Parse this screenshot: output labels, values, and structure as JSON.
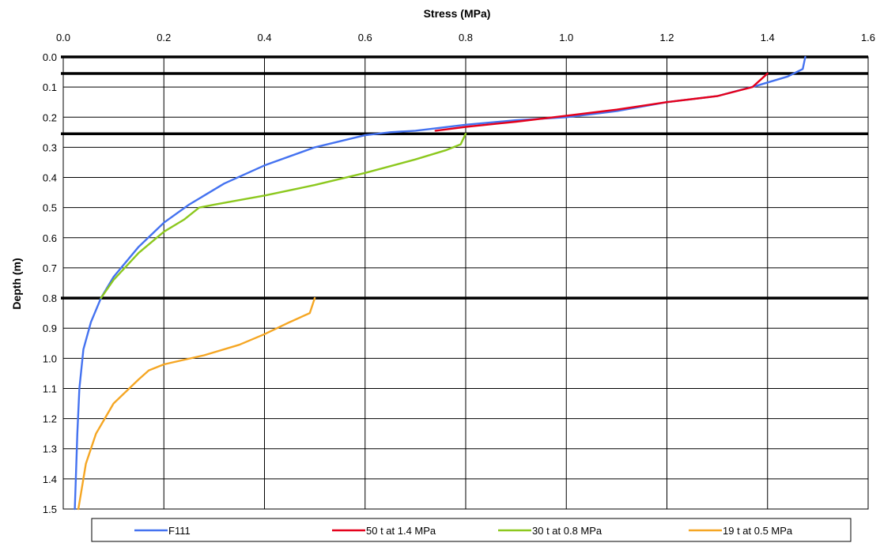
{
  "chart_data": {
    "type": "line",
    "title": "",
    "xlabel": "Stress (MPa)",
    "ylabel": "Depth (m)",
    "x_axis_position": "top",
    "y_axis_inverted": true,
    "xlim": [
      0,
      1.6
    ],
    "ylim": [
      0,
      1.5
    ],
    "x_ticks": [
      "0.0",
      "0.2",
      "0.4",
      "0.6",
      "0.8",
      "1.0",
      "1.2",
      "1.4",
      "1.6"
    ],
    "y_ticks": [
      "0.0",
      "0.1",
      "0.2",
      "0.3",
      "0.4",
      "0.5",
      "0.6",
      "0.7",
      "0.8",
      "0.9",
      "1.0",
      "1.1",
      "1.2",
      "1.3",
      "1.4",
      "1.5"
    ],
    "grid": true,
    "legend_position": "bottom",
    "layer_boundaries_depth_m": [
      0.0,
      0.055,
      0.255,
      0.8
    ],
    "layer_boundary_color": "#000000",
    "series": [
      {
        "name": "F111",
        "color": "#4472F0",
        "points": [
          {
            "x": 1.475,
            "y": 0.0
          },
          {
            "x": 1.47,
            "y": 0.04
          },
          {
            "x": 1.44,
            "y": 0.065
          },
          {
            "x": 1.38,
            "y": 0.095
          },
          {
            "x": 1.3,
            "y": 0.13
          },
          {
            "x": 1.2,
            "y": 0.15
          },
          {
            "x": 1.1,
            "y": 0.18
          },
          {
            "x": 1.0,
            "y": 0.2
          },
          {
            "x": 0.9,
            "y": 0.21
          },
          {
            "x": 0.8,
            "y": 0.225
          },
          {
            "x": 0.7,
            "y": 0.245
          },
          {
            "x": 0.65,
            "y": 0.25
          },
          {
            "x": 0.6,
            "y": 0.26
          },
          {
            "x": 0.5,
            "y": 0.3
          },
          {
            "x": 0.4,
            "y": 0.36
          },
          {
            "x": 0.32,
            "y": 0.42
          },
          {
            "x": 0.25,
            "y": 0.49
          },
          {
            "x": 0.2,
            "y": 0.55
          },
          {
            "x": 0.15,
            "y": 0.63
          },
          {
            "x": 0.1,
            "y": 0.73
          },
          {
            "x": 0.075,
            "y": 0.8
          },
          {
            "x": 0.055,
            "y": 0.88
          },
          {
            "x": 0.04,
            "y": 0.97
          },
          {
            "x": 0.032,
            "y": 1.1
          },
          {
            "x": 0.028,
            "y": 1.25
          },
          {
            "x": 0.025,
            "y": 1.4
          },
          {
            "x": 0.023,
            "y": 1.5
          }
        ]
      },
      {
        "name": "50 t at 1.4 MPa",
        "color": "#E5001B",
        "points": [
          {
            "x": 1.4,
            "y": 0.055
          },
          {
            "x": 1.39,
            "y": 0.07
          },
          {
            "x": 1.37,
            "y": 0.1
          },
          {
            "x": 1.3,
            "y": 0.13
          },
          {
            "x": 1.2,
            "y": 0.15
          },
          {
            "x": 1.1,
            "y": 0.175
          },
          {
            "x": 1.0,
            "y": 0.195
          },
          {
            "x": 0.9,
            "y": 0.215
          },
          {
            "x": 0.8,
            "y": 0.232
          },
          {
            "x": 0.74,
            "y": 0.245
          }
        ]
      },
      {
        "name": "30 t at 0.8 MPa",
        "color": "#8CC81E",
        "points": [
          {
            "x": 0.8,
            "y": 0.255
          },
          {
            "x": 0.79,
            "y": 0.29
          },
          {
            "x": 0.76,
            "y": 0.31
          },
          {
            "x": 0.7,
            "y": 0.34
          },
          {
            "x": 0.6,
            "y": 0.385
          },
          {
            "x": 0.5,
            "y": 0.425
          },
          {
            "x": 0.4,
            "y": 0.46
          },
          {
            "x": 0.3,
            "y": 0.49
          },
          {
            "x": 0.27,
            "y": 0.5
          },
          {
            "x": 0.24,
            "y": 0.54
          },
          {
            "x": 0.2,
            "y": 0.58
          },
          {
            "x": 0.15,
            "y": 0.65
          },
          {
            "x": 0.1,
            "y": 0.74
          },
          {
            "x": 0.075,
            "y": 0.8
          }
        ]
      },
      {
        "name": "19 t at 0.5 MPa",
        "color": "#F5A623",
        "points": [
          {
            "x": 0.5,
            "y": 0.8
          },
          {
            "x": 0.49,
            "y": 0.85
          },
          {
            "x": 0.45,
            "y": 0.88
          },
          {
            "x": 0.4,
            "y": 0.92
          },
          {
            "x": 0.35,
            "y": 0.955
          },
          {
            "x": 0.28,
            "y": 0.99
          },
          {
            "x": 0.2,
            "y": 1.02
          },
          {
            "x": 0.17,
            "y": 1.04
          },
          {
            "x": 0.15,
            "y": 1.07
          },
          {
            "x": 0.1,
            "y": 1.15
          },
          {
            "x": 0.065,
            "y": 1.25
          },
          {
            "x": 0.045,
            "y": 1.35
          },
          {
            "x": 0.035,
            "y": 1.45
          },
          {
            "x": 0.03,
            "y": 1.5
          }
        ]
      }
    ]
  }
}
